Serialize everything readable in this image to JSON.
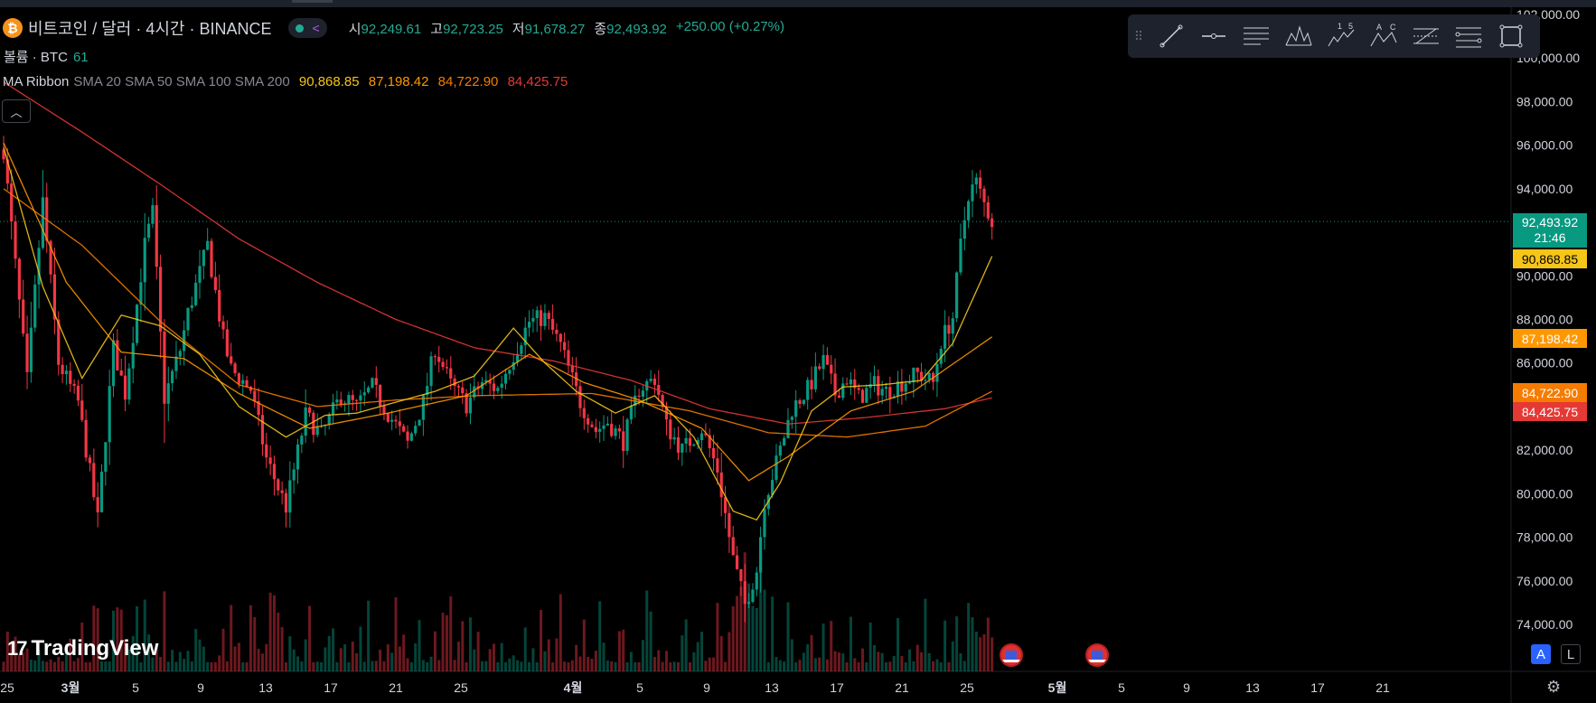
{
  "header": {
    "coin_icon": "bitcoin-icon",
    "symbol_title": "비트코인 / 달러 · 4시간 · BINANCE",
    "ohlc": [
      {
        "key": "시",
        "value": "92,249.61"
      },
      {
        "key": "고",
        "value": "92,723.25"
      },
      {
        "key": "저",
        "value": "91,678.27"
      },
      {
        "key": "종",
        "value": "92,493.92"
      }
    ],
    "change": "+250.00 (+0.27%)",
    "volume_label": "볼륨 · BTC",
    "volume_value": "61",
    "ma_label": "MA Ribbon",
    "ma_params": "SMA 20 SMA 50 SMA 100 SMA 200",
    "ma_values": [
      "90,868.85",
      "87,198.42",
      "84,722.90",
      "84,425.75"
    ],
    "collapse_icon": "chevron-up-icon"
  },
  "toolbar": {
    "tools": [
      "trend-line-icon",
      "horizontal-ray-icon",
      "parallel-channel-icon",
      "pattern-icon",
      "elliott-wave-icon",
      "abcd-pattern-icon",
      "fib-retracement-icon",
      "fib-channel-icon",
      "rectangle-icon"
    ],
    "wave_digits": [
      "1",
      "5"
    ],
    "abc_letters": [
      "A",
      "C"
    ]
  },
  "price_tags": {
    "last_price": "92,493.92",
    "countdown": "21:46",
    "sma20": "90,868.85",
    "sma50": "87,198.42",
    "sma100": "84,722.90",
    "sma200": "84,425.75"
  },
  "bottom": {
    "logo_mark": "17",
    "logo_text": "TradingView",
    "auto_button": "A",
    "log_button": "L",
    "settings_icon": "gear-icon",
    "event_icon": "us-flag-icon"
  },
  "colors": {
    "up": "#089981",
    "down": "#f23645",
    "sma20": "#f5c518",
    "sma50": "#ff9800",
    "sma100": "#f57c00",
    "sma200": "#e53935",
    "background": "#000000"
  },
  "chart_data": {
    "type": "candlestick",
    "symbol": "BTCUSD",
    "timeframe": "4H",
    "y_axis": {
      "ticks": [
        "74,000.00",
        "76,000.00",
        "78,000.00",
        "80,000.00",
        "82,000.00",
        "84,000.00",
        "86,000.00",
        "88,000.00",
        "90,000.00",
        "92,000.00",
        "94,000.00",
        "96,000.00",
        "98,000.00",
        "100,000.00",
        "102,000.00"
      ],
      "range": [
        72600,
        102400
      ]
    },
    "x_axis": {
      "labels": [
        "25",
        "3월",
        "5",
        "9",
        "13",
        "17",
        "21",
        "25",
        "4월",
        "5",
        "9",
        "13",
        "17",
        "21",
        "25",
        "5월",
        "5",
        "9",
        "13",
        "17",
        "21"
      ],
      "bold": [
        "3월",
        "4월",
        "5월"
      ]
    },
    "close_path": [
      [
        0,
        95800
      ],
      [
        6,
        85200
      ],
      [
        10,
        93400
      ],
      [
        14,
        86000
      ],
      [
        19,
        84200
      ],
      [
        24,
        78800
      ],
      [
        28,
        86700
      ],
      [
        31,
        84600
      ],
      [
        36,
        91400
      ],
      [
        38,
        92900
      ],
      [
        41,
        84400
      ],
      [
        45,
        86600
      ],
      [
        47,
        88300
      ],
      [
        52,
        91400
      ],
      [
        56,
        87100
      ],
      [
        58,
        85700
      ],
      [
        63,
        84800
      ],
      [
        67,
        81600
      ],
      [
        72,
        79400
      ],
      [
        77,
        83600
      ],
      [
        81,
        82700
      ],
      [
        86,
        84500
      ],
      [
        90,
        84000
      ],
      [
        94,
        84900
      ],
      [
        98,
        83700
      ],
      [
        103,
        82300
      ],
      [
        107,
        84200
      ],
      [
        110,
        86700
      ],
      [
        114,
        85000
      ],
      [
        118,
        84100
      ],
      [
        122,
        85100
      ],
      [
        126,
        84800
      ],
      [
        130,
        86400
      ],
      [
        134,
        87900
      ],
      [
        138,
        88100
      ],
      [
        142,
        86800
      ],
      [
        147,
        84200
      ],
      [
        151,
        82900
      ],
      [
        154,
        83300
      ],
      [
        158,
        82400
      ],
      [
        162,
        84800
      ],
      [
        166,
        85300
      ],
      [
        169,
        83100
      ],
      [
        173,
        82000
      ],
      [
        178,
        83000
      ],
      [
        182,
        81100
      ],
      [
        186,
        77000
      ],
      [
        189,
        74900
      ],
      [
        192,
        76500
      ],
      [
        194,
        79700
      ],
      [
        197,
        81400
      ],
      [
        201,
        83900
      ],
      [
        205,
        84800
      ],
      [
        209,
        86100
      ],
      [
        212,
        84600
      ],
      [
        215,
        85300
      ],
      [
        218,
        84400
      ],
      [
        222,
        85000
      ],
      [
        225,
        84700
      ],
      [
        229,
        85100
      ],
      [
        233,
        85500
      ],
      [
        237,
        85100
      ],
      [
        239,
        87000
      ],
      [
        242,
        88100
      ],
      [
        244,
        91400
      ],
      [
        246,
        93800
      ],
      [
        248,
        94300
      ],
      [
        250,
        93300
      ],
      [
        252,
        92500
      ]
    ],
    "sma20_path": [
      [
        0,
        95900
      ],
      [
        10,
        89500
      ],
      [
        20,
        85300
      ],
      [
        30,
        88200
      ],
      [
        40,
        87700
      ],
      [
        50,
        86400
      ],
      [
        60,
        84000
      ],
      [
        72,
        82600
      ],
      [
        82,
        83600
      ],
      [
        90,
        83700
      ],
      [
        100,
        84200
      ],
      [
        110,
        84700
      ],
      [
        120,
        85400
      ],
      [
        130,
        87600
      ],
      [
        138,
        86000
      ],
      [
        146,
        84700
      ],
      [
        156,
        83700
      ],
      [
        166,
        84500
      ],
      [
        176,
        82600
      ],
      [
        186,
        79200
      ],
      [
        192,
        78800
      ],
      [
        198,
        80500
      ],
      [
        206,
        83800
      ],
      [
        214,
        84900
      ],
      [
        224,
        85000
      ],
      [
        234,
        85200
      ],
      [
        242,
        86900
      ],
      [
        252,
        90900
      ]
    ],
    "sma50_path": [
      [
        0,
        96100
      ],
      [
        16,
        89700
      ],
      [
        30,
        86500
      ],
      [
        46,
        86200
      ],
      [
        60,
        84600
      ],
      [
        78,
        83000
      ],
      [
        98,
        83700
      ],
      [
        118,
        84500
      ],
      [
        134,
        86400
      ],
      [
        148,
        85100
      ],
      [
        162,
        84300
      ],
      [
        178,
        83000
      ],
      [
        190,
        80600
      ],
      [
        200,
        81700
      ],
      [
        216,
        83800
      ],
      [
        232,
        84700
      ],
      [
        252,
        87200
      ]
    ],
    "sma100_path": [
      [
        0,
        94000
      ],
      [
        20,
        91400
      ],
      [
        40,
        87900
      ],
      [
        60,
        85000
      ],
      [
        80,
        84000
      ],
      [
        100,
        84300
      ],
      [
        120,
        84500
      ],
      [
        150,
        84600
      ],
      [
        175,
        83800
      ],
      [
        195,
        82800
      ],
      [
        215,
        82600
      ],
      [
        235,
        83100
      ],
      [
        252,
        84700
      ]
    ],
    "sma200_path": [
      [
        0,
        98900
      ],
      [
        20,
        96600
      ],
      [
        40,
        94200
      ],
      [
        60,
        91700
      ],
      [
        80,
        89700
      ],
      [
        100,
        88000
      ],
      [
        120,
        86700
      ],
      [
        140,
        86100
      ],
      [
        160,
        85200
      ],
      [
        180,
        83900
      ],
      [
        200,
        83200
      ],
      [
        220,
        83500
      ],
      [
        240,
        83900
      ],
      [
        252,
        84400
      ]
    ],
    "last_price": 92493.92,
    "n_candles": 253
  }
}
